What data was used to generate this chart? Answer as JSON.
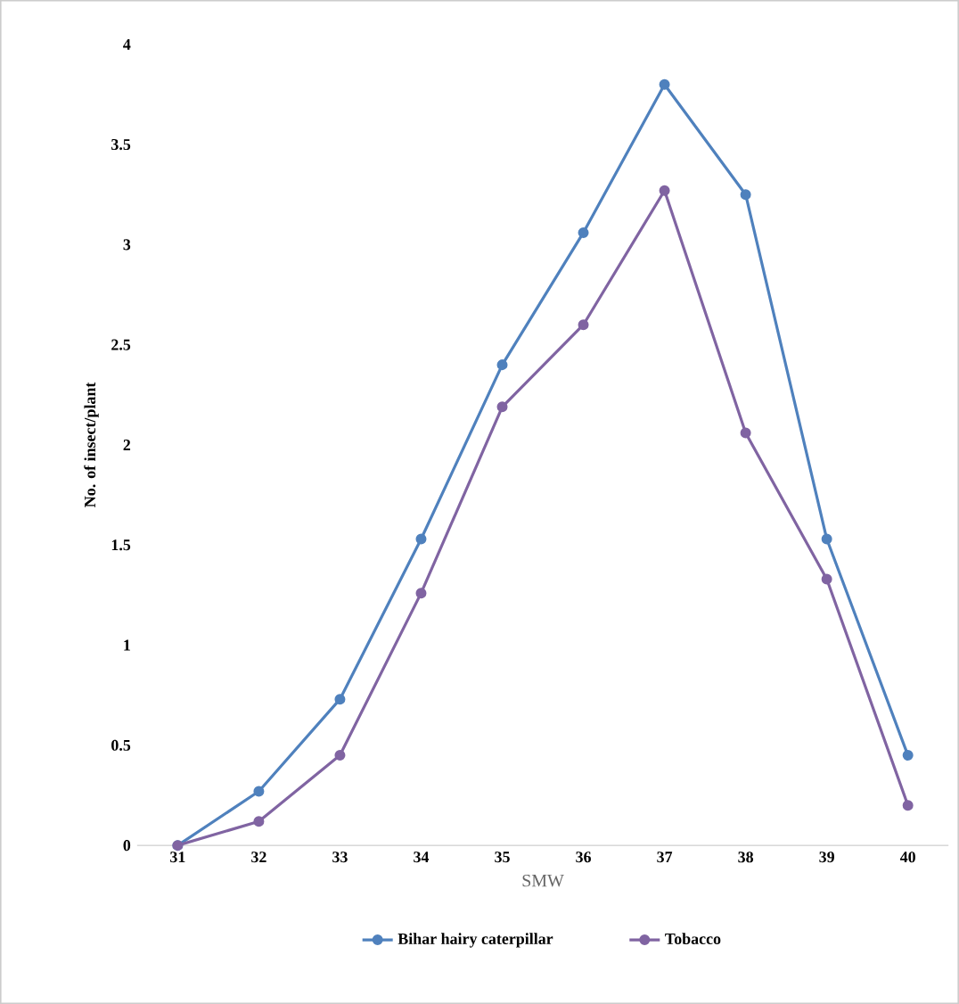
{
  "chart_data": {
    "type": "line",
    "xlabel": "SMW",
    "ylabel": "No. of insect/plant",
    "categories": [
      "31",
      "32",
      "33",
      "34",
      "35",
      "36",
      "37",
      "38",
      "39",
      "40"
    ],
    "series": [
      {
        "name": "Bihar hairy caterpillar",
        "color": "#4f81bd",
        "values": [
          0,
          0.27,
          0.73,
          1.53,
          2.4,
          3.06,
          3.8,
          3.25,
          1.53,
          0.45
        ]
      },
      {
        "name": "Tobacco",
        "color": "#8064a2",
        "values": [
          0,
          0.12,
          0.45,
          1.26,
          2.19,
          2.6,
          3.27,
          2.06,
          1.33,
          0.2
        ]
      }
    ],
    "ylim": [
      0,
      4
    ],
    "yticks": [
      0,
      0.5,
      1,
      1.5,
      2,
      2.5,
      3,
      3.5,
      4
    ],
    "grid": false,
    "legend": "bottom",
    "marker": "circle",
    "line_style": "solid"
  }
}
